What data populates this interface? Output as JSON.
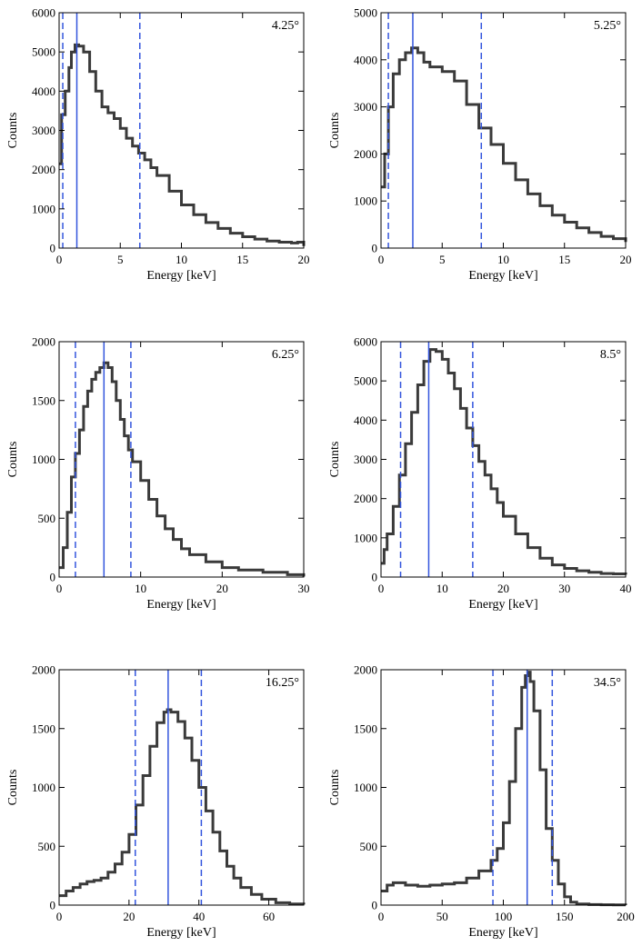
{
  "figure": {
    "background": "#ffffff",
    "spectrum_color": "#3a3a3a",
    "marker_color": "#3355dd"
  },
  "chart_data": [
    {
      "type": "line",
      "panel_label": "4.25°",
      "xlabel": "Energy [keV]",
      "ylabel": "Counts",
      "xlim": [
        0,
        20
      ],
      "ylim": [
        0,
        6000
      ],
      "xticks": [
        0,
        5,
        10,
        15,
        20
      ],
      "xtick_labels": [
        "0",
        "5",
        "10",
        "15",
        "20"
      ],
      "yticks": [
        0,
        1000,
        2000,
        3000,
        4000,
        5000,
        6000
      ],
      "ytick_labels": [
        "0",
        "1000",
        "2000",
        "3000",
        "4000",
        "5000",
        "6000"
      ],
      "series": [
        {
          "name": "spectrum",
          "x": [
            0,
            0.2,
            0.5,
            0.8,
            1,
            1.3,
            1.6,
            2,
            2.5,
            3,
            3.5,
            4,
            4.5,
            5,
            5.5,
            6,
            6.5,
            7,
            7.5,
            8,
            9,
            10,
            11,
            12,
            13,
            14,
            15,
            16,
            17,
            18,
            19,
            19.5,
            20
          ],
          "y": [
            2150,
            3400,
            4000,
            4600,
            5000,
            5180,
            5150,
            5000,
            4500,
            4000,
            3600,
            3450,
            3300,
            3050,
            2800,
            2600,
            2420,
            2250,
            2050,
            1850,
            1450,
            1100,
            850,
            650,
            500,
            380,
            290,
            230,
            180,
            150,
            130,
            150,
            50
          ]
        }
      ],
      "lines": {
        "solid": 1.45,
        "dashed": [
          0.3,
          6.6
        ]
      }
    },
    {
      "type": "line",
      "panel_label": "5.25°",
      "xlabel": "Energy [keV]",
      "ylabel": "Counts",
      "xlim": [
        0,
        20
      ],
      "ylim": [
        0,
        5000
      ],
      "xticks": [
        0,
        5,
        10,
        15,
        20
      ],
      "xtick_labels": [
        "0",
        "5",
        "10",
        "15",
        "20"
      ],
      "yticks": [
        0,
        1000,
        2000,
        3000,
        4000,
        5000
      ],
      "ytick_labels": [
        "0",
        "1000",
        "2000",
        "3000",
        "4000",
        "5000"
      ],
      "series": [
        {
          "name": "spectrum",
          "x": [
            0,
            0.3,
            0.6,
            1,
            1.5,
            2,
            2.5,
            3,
            3.5,
            4,
            5,
            6,
            7,
            8,
            9,
            10,
            11,
            12,
            13,
            14,
            15,
            16,
            17,
            18,
            19,
            20
          ],
          "y": [
            1300,
            2000,
            3000,
            3700,
            4000,
            4150,
            4250,
            4150,
            3950,
            3850,
            3750,
            3550,
            3050,
            2550,
            2200,
            1800,
            1450,
            1150,
            900,
            700,
            550,
            430,
            330,
            250,
            200,
            130
          ]
        }
      ],
      "lines": {
        "solid": 2.6,
        "dashed": [
          0.6,
          8.2
        ]
      }
    },
    {
      "type": "line",
      "panel_label": "6.25°",
      "xlabel": "Energy [keV]",
      "ylabel": "Counts",
      "xlim": [
        0,
        30
      ],
      "ylim": [
        0,
        2000
      ],
      "xticks": [
        0,
        10,
        20,
        30
      ],
      "xtick_labels": [
        "0",
        "10",
        "20",
        "30"
      ],
      "yticks": [
        0,
        500,
        1000,
        1500,
        2000
      ],
      "ytick_labels": [
        "0",
        "500",
        "1000",
        "1500",
        "2000"
      ],
      "series": [
        {
          "name": "spectrum",
          "x": [
            0,
            0.5,
            1,
            1.5,
            2,
            2.5,
            3,
            3.5,
            4,
            4.5,
            5,
            5.5,
            6,
            6.5,
            7,
            7.5,
            8,
            8.5,
            9,
            10,
            11,
            12,
            13,
            14,
            15,
            16,
            18,
            20,
            22,
            25,
            28,
            30
          ],
          "y": [
            80,
            250,
            550,
            850,
            1050,
            1250,
            1450,
            1580,
            1680,
            1740,
            1780,
            1820,
            1780,
            1660,
            1500,
            1340,
            1200,
            1080,
            980,
            820,
            660,
            520,
            410,
            320,
            240,
            190,
            130,
            80,
            60,
            40,
            20,
            5
          ]
        }
      ],
      "lines": {
        "solid": 5.5,
        "dashed": [
          2,
          8.8
        ]
      }
    },
    {
      "type": "line",
      "panel_label": "8.5°",
      "xlabel": "Energy [keV]",
      "ylabel": "Counts",
      "xlim": [
        0,
        40
      ],
      "ylim": [
        0,
        6000
      ],
      "xticks": [
        0,
        10,
        20,
        30,
        40
      ],
      "xtick_labels": [
        "0",
        "10",
        "20",
        "30",
        "40"
      ],
      "yticks": [
        0,
        1000,
        2000,
        3000,
        4000,
        5000,
        6000
      ],
      "ytick_labels": [
        "0",
        "1000",
        "2000",
        "3000",
        "4000",
        "5000",
        "6000"
      ],
      "series": [
        {
          "name": "spectrum",
          "x": [
            0,
            0.5,
            1,
            2,
            3,
            4,
            5,
            6,
            7,
            8,
            9,
            10,
            11,
            12,
            13,
            14,
            15,
            16,
            17,
            18,
            19,
            20,
            22,
            24,
            26,
            28,
            30,
            32,
            34,
            36,
            38,
            40
          ],
          "y": [
            350,
            700,
            1100,
            1800,
            2600,
            3400,
            4200,
            4900,
            5500,
            5800,
            5750,
            5550,
            5200,
            4800,
            4300,
            3800,
            3350,
            2950,
            2600,
            2250,
            1900,
            1550,
            1100,
            750,
            480,
            310,
            220,
            160,
            120,
            90,
            80,
            60
          ]
        }
      ],
      "lines": {
        "solid": 7.8,
        "dashed": [
          3.2,
          15
        ]
      }
    },
    {
      "type": "line",
      "panel_label": "16.25°",
      "xlabel": "Energy [keV]",
      "ylabel": "Counts",
      "xlim": [
        0,
        70
      ],
      "ylim": [
        0,
        2000
      ],
      "xticks": [
        0,
        20,
        40,
        60
      ],
      "xtick_labels": [
        "0",
        "20",
        "40",
        "60"
      ],
      "yticks": [
        0,
        500,
        1000,
        1500,
        2000
      ],
      "ytick_labels": [
        "0",
        "500",
        "1000",
        "1500",
        "2000"
      ],
      "series": [
        {
          "name": "spectrum",
          "x": [
            0,
            2,
            4,
            6,
            8,
            10,
            12,
            14,
            16,
            18,
            20,
            22,
            24,
            26,
            28,
            30,
            31,
            32,
            34,
            36,
            38,
            40,
            42,
            44,
            46,
            48,
            50,
            52,
            55,
            58,
            62,
            66,
            70
          ],
          "y": [
            80,
            120,
            150,
            180,
            200,
            210,
            230,
            280,
            350,
            450,
            600,
            850,
            1100,
            1350,
            1550,
            1640,
            1660,
            1640,
            1560,
            1420,
            1230,
            1000,
            800,
            620,
            460,
            330,
            230,
            150,
            90,
            50,
            20,
            10,
            5
          ]
        }
      ],
      "lines": {
        "solid": 31.2,
        "dashed": [
          21.8,
          40.7
        ]
      }
    },
    {
      "type": "line",
      "panel_label": "34.5°",
      "xlabel": "Energy [keV]",
      "ylabel": "Counts",
      "xlim": [
        0,
        200
      ],
      "ylim": [
        0,
        2000
      ],
      "xticks": [
        0,
        50,
        100,
        150,
        200
      ],
      "xtick_labels": [
        "0",
        "50",
        "100",
        "150",
        "200"
      ],
      "yticks": [
        0,
        500,
        1000,
        1500,
        2000
      ],
      "ytick_labels": [
        "0",
        "500",
        "1000",
        "1500",
        "2000"
      ],
      "series": [
        {
          "name": "spectrum",
          "x": [
            0,
            5,
            10,
            20,
            30,
            40,
            50,
            60,
            70,
            80,
            90,
            95,
            100,
            105,
            110,
            115,
            118,
            120,
            122,
            125,
            130,
            135,
            140,
            145,
            150,
            155,
            160,
            170,
            180,
            190,
            200
          ],
          "y": [
            120,
            170,
            190,
            170,
            160,
            170,
            180,
            190,
            230,
            290,
            380,
            480,
            700,
            1050,
            1500,
            1850,
            1950,
            1980,
            1900,
            1650,
            1150,
            650,
            380,
            180,
            70,
            25,
            10,
            5,
            3,
            2,
            0
          ]
        }
      ],
      "lines": {
        "solid": 119.5,
        "dashed": [
          91.5,
          140
        ]
      }
    }
  ]
}
